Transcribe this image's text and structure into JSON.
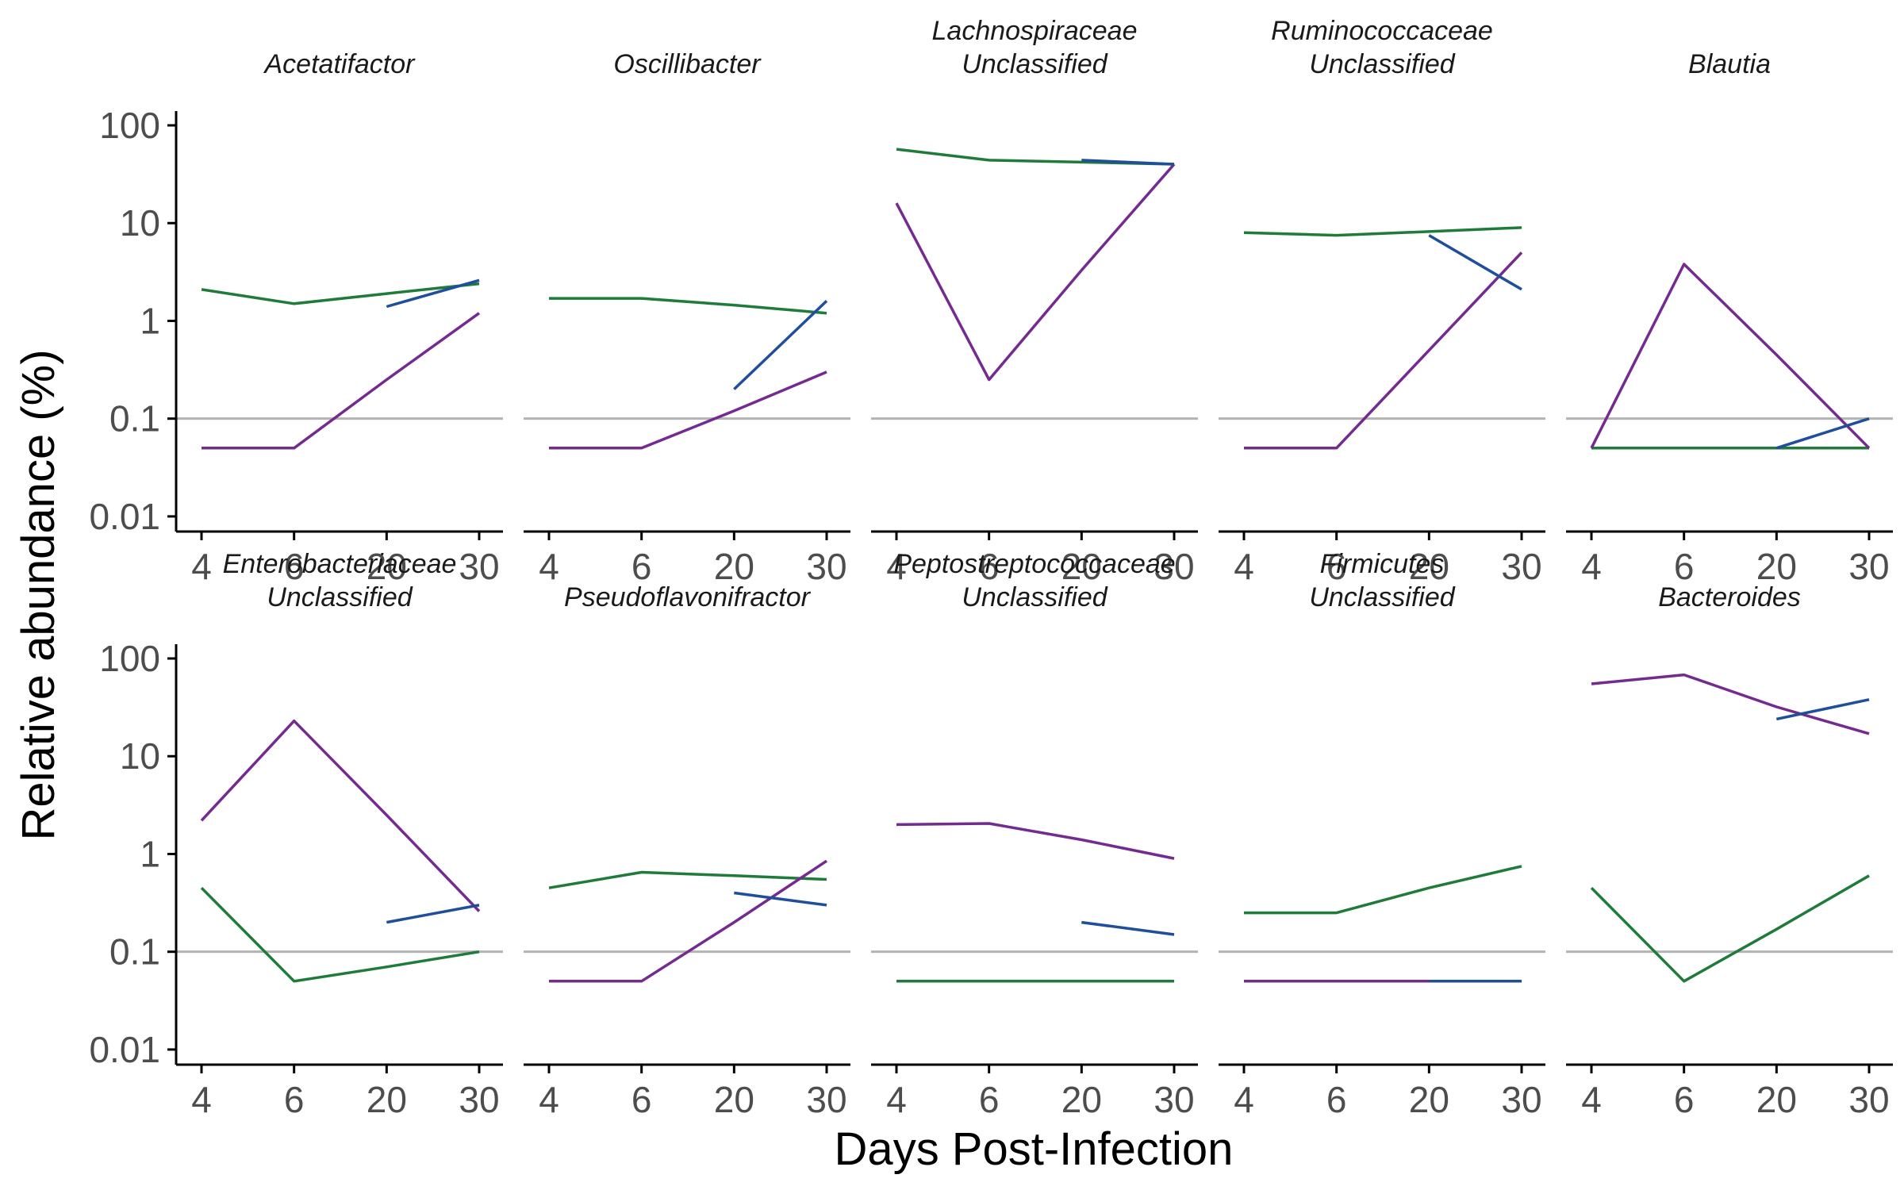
{
  "chart_data": {
    "type": "line",
    "layout": "facet-grid",
    "xlabel": "Days Post-Infection",
    "ylabel": "Relative abundance (%)",
    "x_ticks": [
      "4",
      "6",
      "20",
      "30"
    ],
    "y_scale": "log10",
    "y_ticks": [
      0.01,
      0.1,
      1,
      10,
      100
    ],
    "y_tick_labels": [
      "0.01",
      "0.1",
      "1",
      "10",
      "100"
    ],
    "ylim": [
      0.007,
      140
    ],
    "reference_line": 0.1,
    "reference_color": "#b3b3b3",
    "series_colors": {
      "green": "#1e7b3a",
      "purple": "#742a8f",
      "blue": "#1f4e9c"
    },
    "panels": [
      {
        "title": [
          "Acetatifactor"
        ],
        "series": [
          {
            "color": "green",
            "x": [
              "4",
              "6",
              "20",
              "30"
            ],
            "y": [
              2.1,
              1.5,
              1.9,
              2.4
            ]
          },
          {
            "color": "purple",
            "x": [
              "4",
              "6",
              "20",
              "30"
            ],
            "y": [
              0.05,
              0.05,
              0.25,
              1.2
            ]
          },
          {
            "color": "blue",
            "x": [
              "20",
              "30"
            ],
            "y": [
              1.4,
              2.6
            ]
          }
        ]
      },
      {
        "title": [
          "Oscillibacter"
        ],
        "series": [
          {
            "color": "green",
            "x": [
              "4",
              "6",
              "20",
              "30"
            ],
            "y": [
              1.7,
              1.7,
              1.45,
              1.2
            ]
          },
          {
            "color": "purple",
            "x": [
              "4",
              "6",
              "20",
              "30"
            ],
            "y": [
              0.05,
              0.05,
              0.12,
              0.3
            ]
          },
          {
            "color": "blue",
            "x": [
              "20",
              "30"
            ],
            "y": [
              0.2,
              1.6
            ]
          }
        ]
      },
      {
        "title": [
          "Lachnospiraceae",
          "Unclassified"
        ],
        "series": [
          {
            "color": "green",
            "x": [
              "4",
              "6",
              "20",
              "30"
            ],
            "y": [
              57,
              44,
              42,
              40
            ]
          },
          {
            "color": "purple",
            "x": [
              "4",
              "6",
              "20",
              "30"
            ],
            "y": [
              16,
              0.25,
              3.3,
              40
            ]
          },
          {
            "color": "blue",
            "x": [
              "20",
              "30"
            ],
            "y": [
              44,
              40
            ]
          }
        ]
      },
      {
        "title": [
          "Ruminococcaceae",
          "Unclassified"
        ],
        "series": [
          {
            "color": "green",
            "x": [
              "4",
              "6",
              "20",
              "30"
            ],
            "y": [
              8,
              7.5,
              8.2,
              9
            ]
          },
          {
            "color": "purple",
            "x": [
              "4",
              "6",
              "20",
              "30"
            ],
            "y": [
              0.05,
              0.05,
              0.5,
              5
            ]
          },
          {
            "color": "blue",
            "x": [
              "20",
              "30"
            ],
            "y": [
              7.5,
              2.1
            ]
          }
        ]
      },
      {
        "title": [
          "Blautia"
        ],
        "series": [
          {
            "color": "green",
            "x": [
              "4",
              "6",
              "20",
              "30"
            ],
            "y": [
              0.05,
              0.05,
              0.05,
              0.05
            ]
          },
          {
            "color": "purple",
            "x": [
              "4",
              "6",
              "20",
              "30"
            ],
            "y": [
              0.05,
              3.8,
              0.45,
              0.05
            ]
          },
          {
            "color": "blue",
            "x": [
              "20",
              "30"
            ],
            "y": [
              0.05,
              0.1
            ]
          }
        ]
      },
      {
        "title": [
          "Enterobacteriaceae",
          "Unclassified"
        ],
        "series": [
          {
            "color": "purple",
            "x": [
              "4",
              "6",
              "20",
              "30"
            ],
            "y": [
              2.2,
              23,
              2.5,
              0.26
            ]
          },
          {
            "color": "green",
            "x": [
              "4",
              "6",
              "20",
              "30"
            ],
            "y": [
              0.45,
              0.05,
              0.07,
              0.1
            ]
          },
          {
            "color": "blue",
            "x": [
              "20",
              "30"
            ],
            "y": [
              0.2,
              0.3
            ]
          }
        ]
      },
      {
        "title": [
          "Pseudoflavonifractor"
        ],
        "series": [
          {
            "color": "green",
            "x": [
              "4",
              "6",
              "20",
              "30"
            ],
            "y": [
              0.45,
              0.65,
              0.6,
              0.55
            ]
          },
          {
            "color": "purple",
            "x": [
              "4",
              "6",
              "20",
              "30"
            ],
            "y": [
              0.05,
              0.05,
              0.2,
              0.85
            ]
          },
          {
            "color": "blue",
            "x": [
              "20",
              "30"
            ],
            "y": [
              0.4,
              0.3
            ]
          }
        ]
      },
      {
        "title": [
          "Peptostreptococcaceae",
          "Unclassified"
        ],
        "series": [
          {
            "color": "purple",
            "x": [
              "4",
              "6",
              "20",
              "30"
            ],
            "y": [
              2,
              2.05,
              1.4,
              0.9
            ]
          },
          {
            "color": "green",
            "x": [
              "4",
              "6",
              "20",
              "30"
            ],
            "y": [
              0.05,
              0.05,
              0.05,
              0.05
            ]
          },
          {
            "color": "blue",
            "x": [
              "20",
              "30"
            ],
            "y": [
              0.2,
              0.15
            ]
          }
        ]
      },
      {
        "title": [
          "Firmicutes",
          "Unclassified"
        ],
        "series": [
          {
            "color": "green",
            "x": [
              "4",
              "6",
              "20",
              "30"
            ],
            "y": [
              0.25,
              0.25,
              0.45,
              0.75
            ]
          },
          {
            "color": "purple",
            "x": [
              "4",
              "6",
              "20",
              "30"
            ],
            "y": [
              0.05,
              0.05,
              0.05,
              0.05
            ]
          },
          {
            "color": "blue",
            "x": [
              "20",
              "30"
            ],
            "y": [
              0.05,
              0.05
            ]
          }
        ]
      },
      {
        "title": [
          "Bacteroides"
        ],
        "series": [
          {
            "color": "purple",
            "x": [
              "4",
              "6",
              "20",
              "30"
            ],
            "y": [
              55,
              68,
              32,
              17
            ]
          },
          {
            "color": "green",
            "x": [
              "4",
              "6",
              "20",
              "30"
            ],
            "y": [
              0.45,
              0.05,
              0.17,
              0.6
            ]
          },
          {
            "color": "blue",
            "x": [
              "20",
              "30"
            ],
            "y": [
              24,
              38
            ]
          }
        ]
      }
    ]
  }
}
